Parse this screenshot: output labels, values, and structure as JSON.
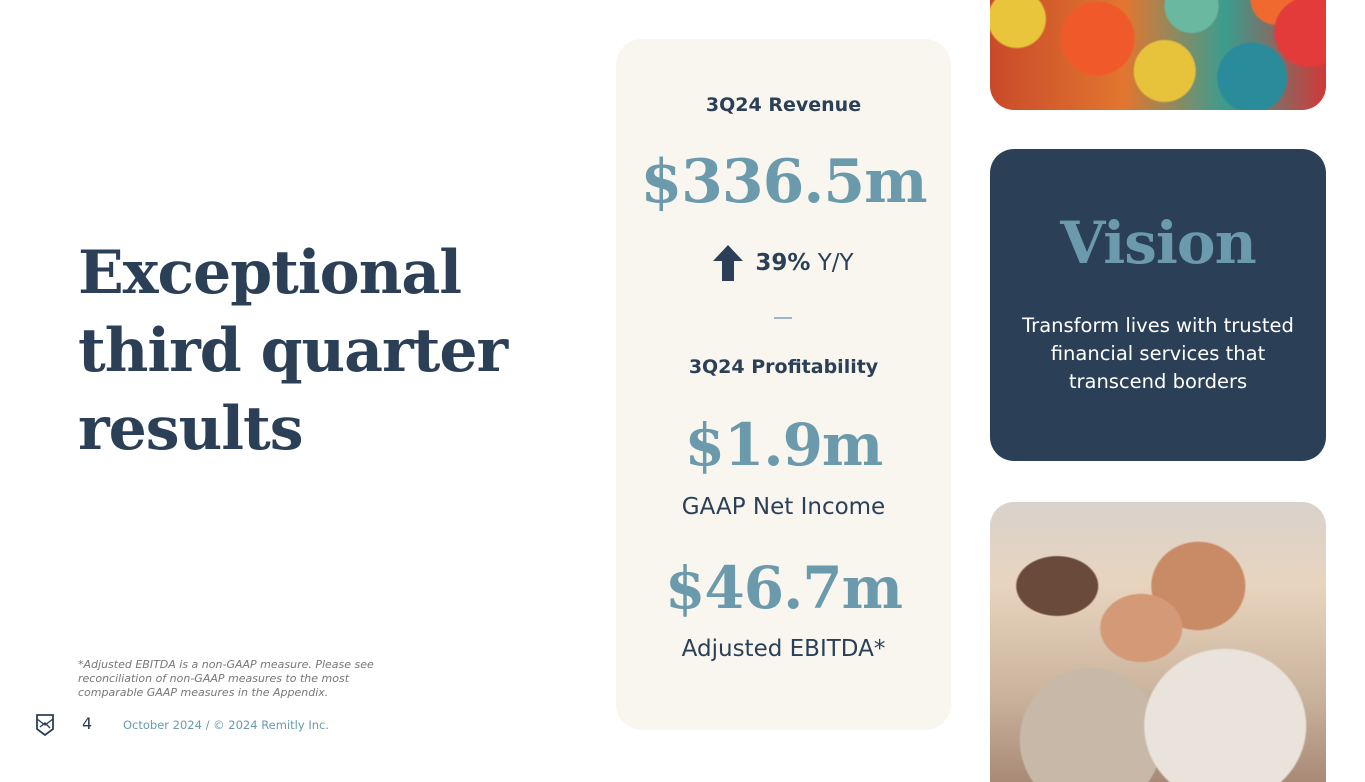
{
  "title": "Exceptional third quarter results",
  "footnote": "*Adjusted EBITDA is a non-GAAP measure. Please see reconciliation of non-GAAP measures to the most comparable GAAP measures in the Appendix.",
  "footer": {
    "page_number": "4",
    "text": "October 2024 / © 2024 Remitly Inc."
  },
  "metrics": {
    "revenue_label": "3Q24 Revenue",
    "revenue_value": "$336.5m",
    "growth_pct": "39%",
    "growth_suffix": "Y/Y",
    "growth_icon": "arrow-up-icon",
    "profit_label": "3Q24 Profitability",
    "net_income_value": "$1.9m",
    "net_income_label": "GAAP Net Income",
    "ebitda_value": "$46.7m",
    "ebitda_label": "Adjusted EBITDA*"
  },
  "vision": {
    "heading": "Vision",
    "text": "Transform lives with trusted financial services that transcend borders"
  },
  "colors": {
    "navy": "#2b4057",
    "teal": "#6a9aab",
    "card": "#f9f6f0"
  }
}
